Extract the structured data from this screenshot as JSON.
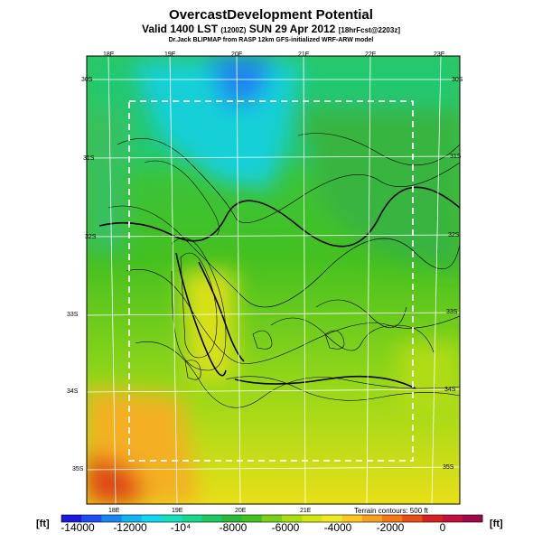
{
  "header": {
    "title": "OvercastDevelopment Potential",
    "subtitle_main": "Valid 1400 LST",
    "subtitle_utc": "(1200Z)",
    "subtitle_date": "SUN 29 Apr 2012",
    "subtitle_fcst": "[18hrFcst@2203z]",
    "credit": "Dr.Jack BLIPMAP from RASP 12km GFS-initialized WRF-ARW model"
  },
  "map": {
    "top_lon_labels": [
      "18E",
      "19E",
      "20E",
      "21E",
      "22E",
      "23E"
    ],
    "bottom_lon_labels": [
      "18E",
      "19E",
      "20E",
      "21E"
    ],
    "left_lat_labels": [
      "30S",
      "31S",
      "32S",
      "33S",
      "34S",
      "35S"
    ],
    "right_lat_labels": [
      "30S",
      "31S",
      "32S",
      "33S",
      "34S",
      "35S"
    ],
    "terrain_note": "Terrain contours: 500 ft"
  },
  "colorbar": {
    "unit_left": "[ft]",
    "unit_right": "[ft]",
    "labels": [
      "-14000",
      "-12000",
      "-10⁴",
      "-8000",
      "-6000",
      "-4000",
      "-2000",
      "0"
    ],
    "colors": [
      "#1a1ad8",
      "#1f4cf0",
      "#1a86f0",
      "#12b4f2",
      "#10d8f0",
      "#14e0c0",
      "#18d890",
      "#20c860",
      "#2ab83a",
      "#44c020",
      "#78d018",
      "#aade14",
      "#d2e610",
      "#f0e820",
      "#f8c820",
      "#f8a020",
      "#f47818",
      "#e84c18",
      "#d82020",
      "#c01040",
      "#a00848"
    ]
  }
}
